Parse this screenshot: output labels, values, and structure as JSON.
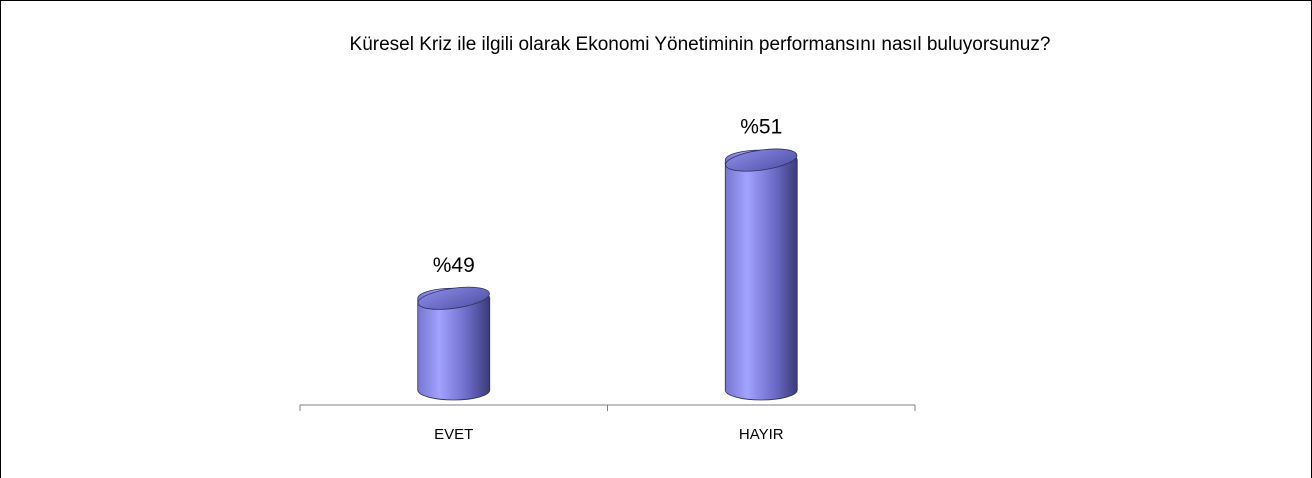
{
  "chart_data": {
    "type": "bar",
    "title": "Küresel Kriz ile ilgili olarak Ekonomi Yönetiminin performansını nasıl buluyorsunuz?",
    "categories": [
      "EVET",
      "HAYIR"
    ],
    "values": [
      49,
      51
    ],
    "value_labels": [
      "%49",
      "%51"
    ],
    "color": "#8c8cf0",
    "ylim": [
      47.6,
      52
    ]
  }
}
